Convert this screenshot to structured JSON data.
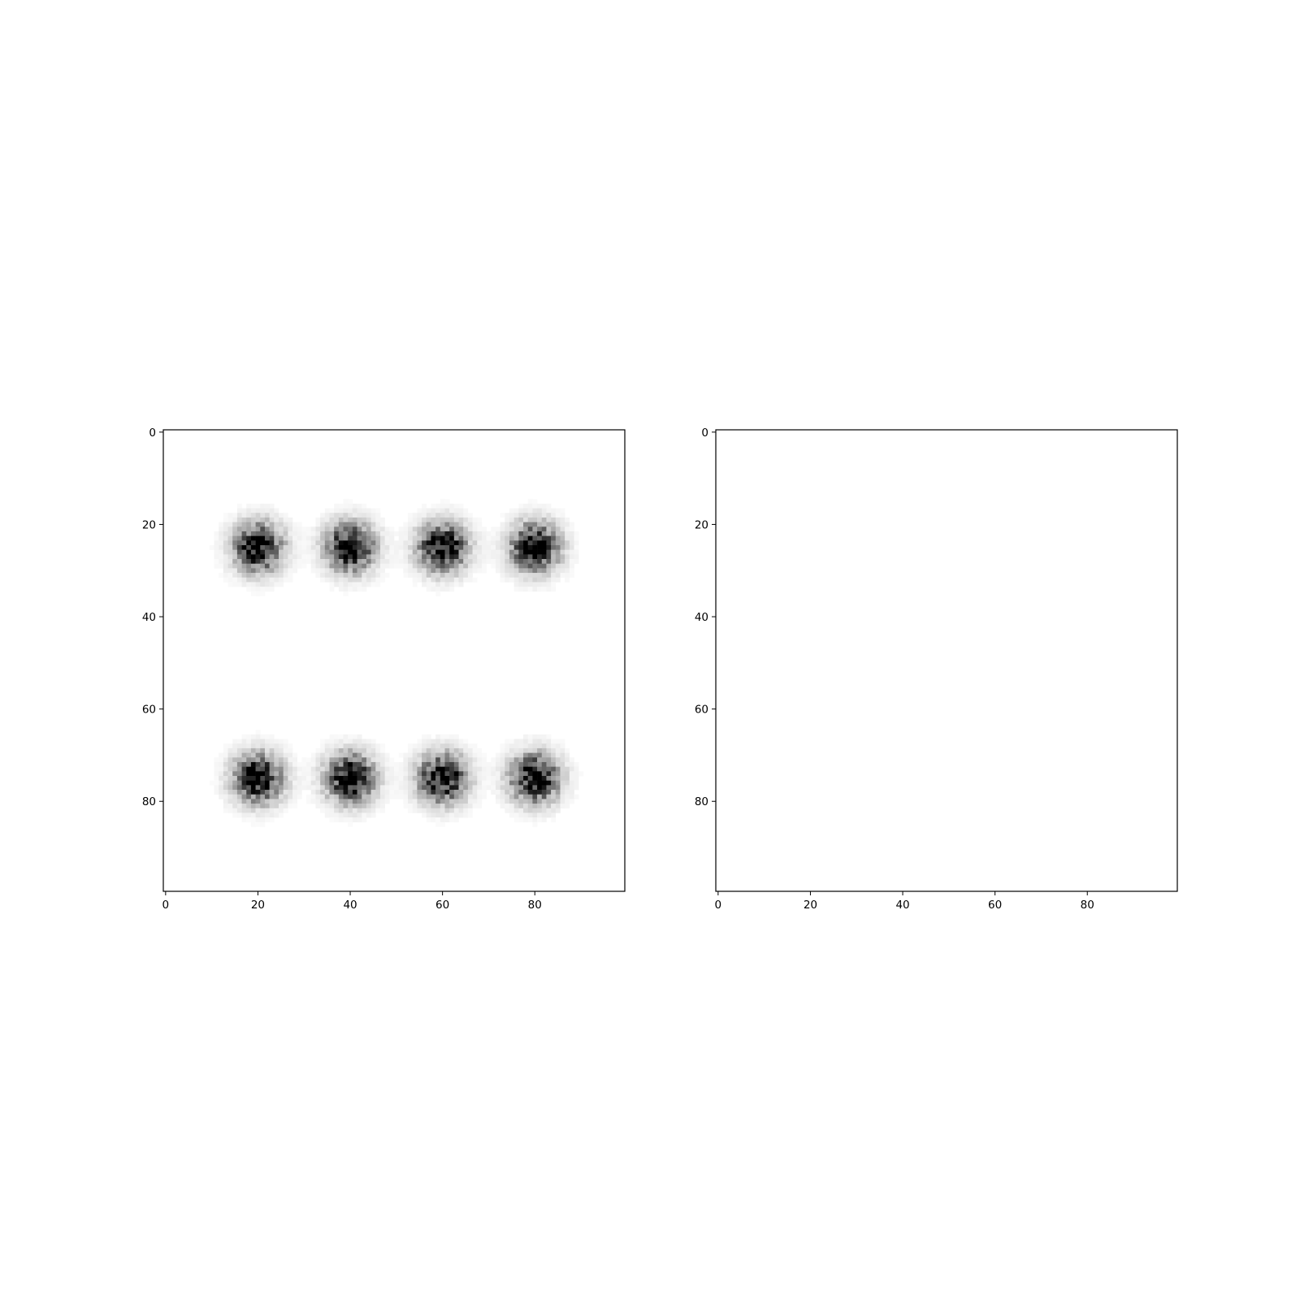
{
  "chart_data": [
    {
      "type": "heatmap",
      "colormap": "gray_r",
      "image_size": [
        100,
        100
      ],
      "origin": "upper",
      "title": "",
      "xlabel": "",
      "ylabel": "",
      "xlim": [
        -0.5,
        99.5
      ],
      "ylim": [
        99.5,
        -0.5
      ],
      "xticks": [
        0,
        20,
        40,
        60,
        80
      ],
      "yticks": [
        0,
        20,
        40,
        60,
        80
      ],
      "xtick_labels": [
        "0",
        "20",
        "40",
        "60",
        "80"
      ],
      "ytick_labels": [
        "0",
        "20",
        "40",
        "60",
        "80"
      ],
      "grid": false,
      "blobs": [
        {
          "x": 20,
          "y": 25,
          "sigma": 3.5
        },
        {
          "x": 40,
          "y": 25,
          "sigma": 3.5
        },
        {
          "x": 60,
          "y": 25,
          "sigma": 3.5
        },
        {
          "x": 80,
          "y": 25,
          "sigma": 3.5
        },
        {
          "x": 20,
          "y": 75,
          "sigma": 3.5
        },
        {
          "x": 40,
          "y": 75,
          "sigma": 3.5
        },
        {
          "x": 60,
          "y": 75,
          "sigma": 3.5
        },
        {
          "x": 80,
          "y": 75,
          "sigma": 3.5
        }
      ]
    },
    {
      "type": "heatmap",
      "colormap": "gray_r",
      "image_size": [
        100,
        100
      ],
      "origin": "upper",
      "title": "",
      "xlabel": "",
      "ylabel": "",
      "xlim": [
        -0.5,
        99.5
      ],
      "ylim": [
        99.5,
        -0.5
      ],
      "xticks": [
        0,
        20,
        40,
        60,
        80
      ],
      "yticks": [
        0,
        20,
        40,
        60,
        80
      ],
      "xtick_labels": [
        "0",
        "20",
        "40",
        "60",
        "80"
      ],
      "ytick_labels": [
        "0",
        "20",
        "40",
        "60",
        "80"
      ],
      "grid": false,
      "blobs": []
    }
  ]
}
